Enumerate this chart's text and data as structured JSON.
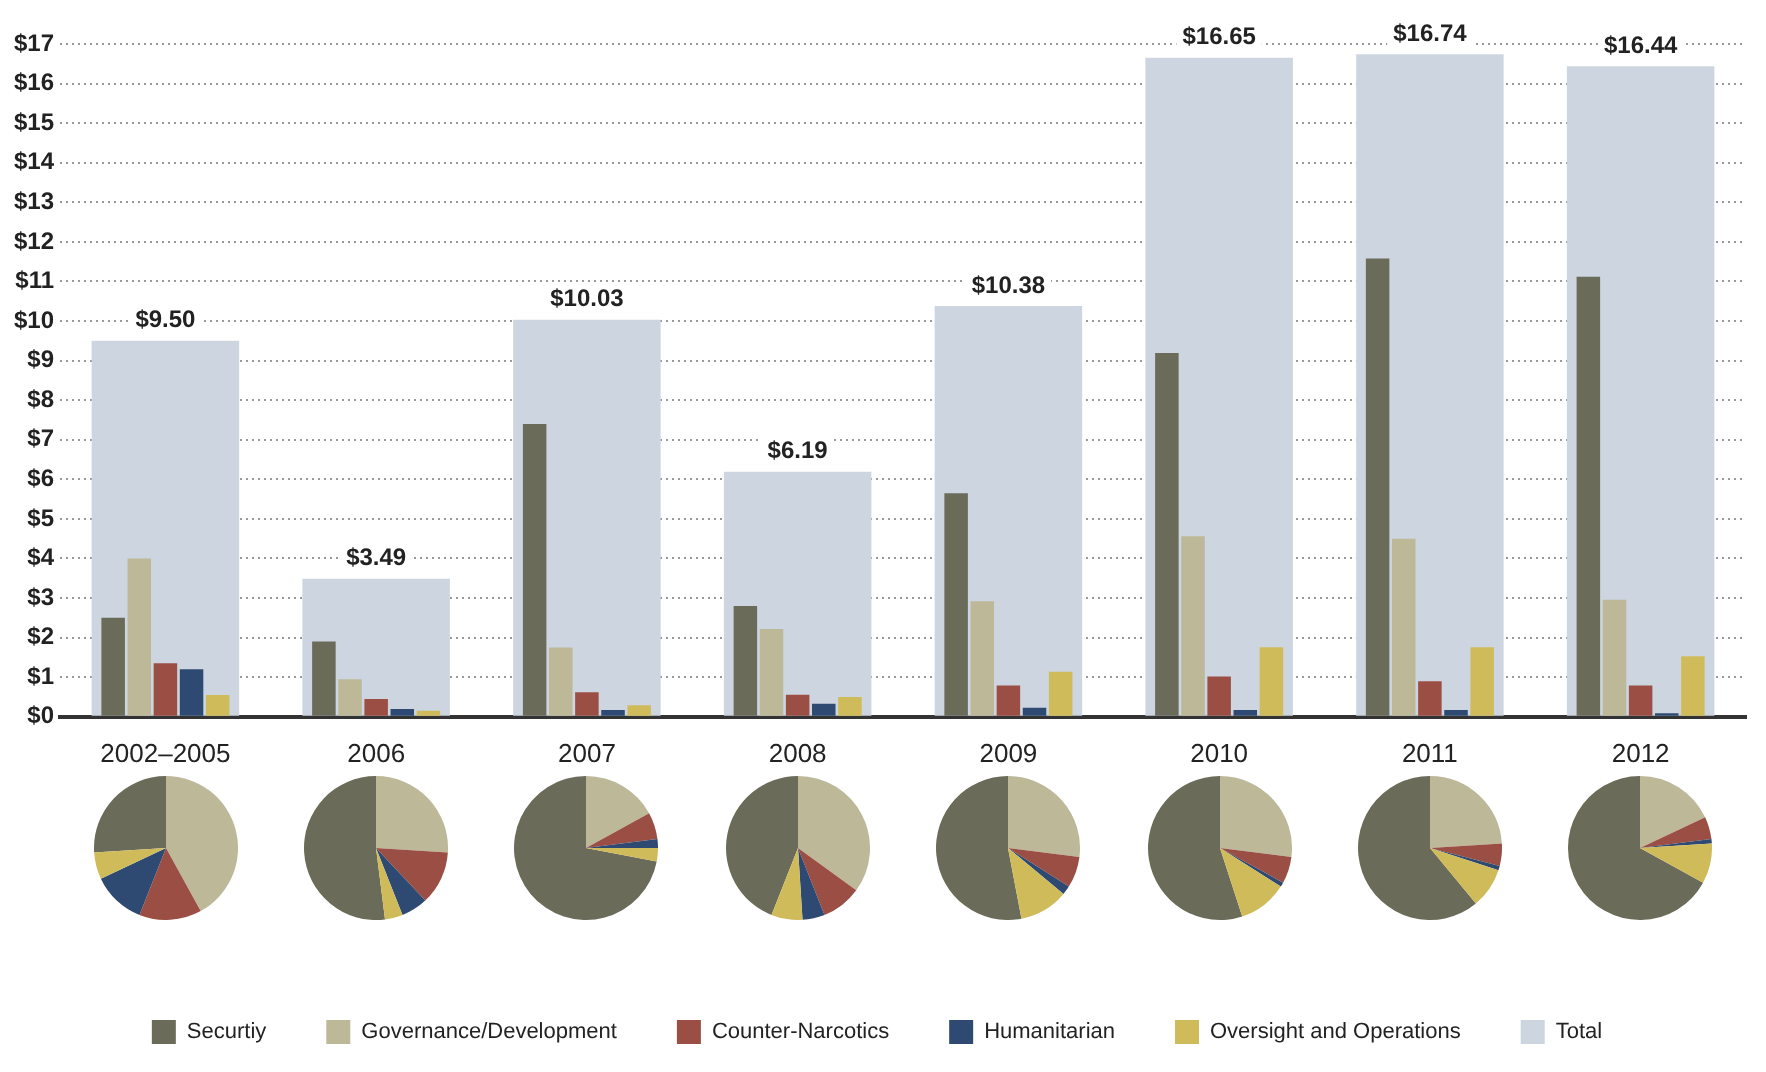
{
  "chart_data": [
    {
      "type": "bar",
      "categories": [
        "2002–2005",
        "2006",
        "2007",
        "2008",
        "2009",
        "2010",
        "2011",
        "2012"
      ],
      "series": [
        {
          "name": "Securtiy",
          "color": "#6b6b5a",
          "values": [
            2.5,
            1.9,
            7.4,
            2.8,
            5.65,
            9.19,
            11.58,
            11.12
          ]
        },
        {
          "name": "Governance/Development",
          "color": "#bcb898",
          "values": [
            4.0,
            0.95,
            1.75,
            2.22,
            2.92,
            4.56,
            4.5,
            2.96
          ]
        },
        {
          "name": "Counter-Narcotics",
          "color": "#9b4f44",
          "values": [
            1.35,
            0.45,
            0.62,
            0.56,
            0.79,
            1.02,
            0.9,
            0.79
          ]
        },
        {
          "name": "Humanitarian",
          "color": "#2f4a72",
          "values": [
            1.2,
            0.2,
            0.17,
            0.33,
            0.23,
            0.17,
            0.17,
            0.09
          ]
        },
        {
          "name": "Oversight and Operations",
          "color": "#d0bb5a",
          "values": [
            0.55,
            0.15,
            0.29,
            0.5,
            1.14,
            1.76,
            1.76,
            1.53
          ]
        },
        {
          "name": "Total",
          "color": "#cdd6e0",
          "values": [
            9.5,
            3.49,
            10.03,
            6.19,
            10.38,
            16.65,
            16.74,
            16.44
          ],
          "value_labels": [
            "$9.50",
            "$3.49",
            "$10.03",
            "$6.19",
            "$10.38",
            "$16.65",
            "$16.74",
            "$16.44"
          ]
        }
      ],
      "ylim": [
        0,
        17
      ],
      "yticks": [
        {
          "value": 0,
          "label": "$0"
        },
        {
          "value": 1,
          "label": "$1"
        },
        {
          "value": 2,
          "label": "$2"
        },
        {
          "value": 3,
          "label": "$3"
        },
        {
          "value": 4,
          "label": "$4"
        },
        {
          "value": 5,
          "label": "$5"
        },
        {
          "value": 6,
          "label": "$6"
        },
        {
          "value": 7,
          "label": "$7"
        },
        {
          "value": 8,
          "label": "$8"
        },
        {
          "value": 9,
          "label": "$9"
        },
        {
          "value": 10,
          "label": "$10"
        },
        {
          "value": 11,
          "label": "$11"
        },
        {
          "value": 12,
          "label": "$12"
        },
        {
          "value": 13,
          "label": "$13"
        },
        {
          "value": 14,
          "label": "$14"
        },
        {
          "value": 15,
          "label": "$15"
        },
        {
          "value": 16,
          "label": "$16"
        },
        {
          "value": 17,
          "label": "$17"
        }
      ],
      "grid": "y",
      "legend": "bottom"
    },
    {
      "type": "pie",
      "categories": [
        null,
        null,
        null,
        null,
        null
      ],
      "values": [
        26,
        42,
        14,
        12,
        6
      ],
      "colors": [
        "#6b6b5a",
        "#bcb898",
        "#9b4f44",
        "#2f4a72",
        "#d0bb5a"
      ]
    },
    {
      "type": "pie",
      "categories": [
        null,
        null,
        null,
        null,
        null
      ],
      "values": [
        52,
        26,
        12,
        6,
        4
      ],
      "colors": [
        "#6b6b5a",
        "#bcb898",
        "#9b4f44",
        "#2f4a72",
        "#d0bb5a"
      ]
    },
    {
      "type": "pie",
      "categories": [
        null,
        null,
        null,
        null,
        null
      ],
      "values": [
        72,
        17,
        6,
        2,
        3
      ],
      "colors": [
        "#6b6b5a",
        "#bcb898",
        "#9b4f44",
        "#2f4a72",
        "#d0bb5a"
      ]
    },
    {
      "type": "pie",
      "categories": [
        null,
        null,
        null,
        null,
        null
      ],
      "values": [
        44,
        35,
        9,
        5,
        7
      ],
      "colors": [
        "#6b6b5a",
        "#bcb898",
        "#9b4f44",
        "#2f4a72",
        "#d0bb5a"
      ]
    },
    {
      "type": "pie",
      "categories": [
        null,
        null,
        null,
        null,
        null
      ],
      "values": [
        53,
        27,
        7,
        2,
        11
      ],
      "colors": [
        "#6b6b5a",
        "#bcb898",
        "#9b4f44",
        "#2f4a72",
        "#d0bb5a"
      ]
    },
    {
      "type": "pie",
      "categories": [
        null,
        null,
        null,
        null,
        null
      ],
      "values": [
        55,
        27,
        6,
        1,
        11
      ],
      "colors": [
        "#6b6b5a",
        "#bcb898",
        "#9b4f44",
        "#2f4a72",
        "#d0bb5a"
      ]
    },
    {
      "type": "pie",
      "categories": [
        null,
        null,
        null,
        null,
        null
      ],
      "values": [
        61,
        24,
        5,
        1,
        9
      ],
      "colors": [
        "#6b6b5a",
        "#bcb898",
        "#9b4f44",
        "#2f4a72",
        "#d0bb5a"
      ]
    },
    {
      "type": "pie",
      "categories": [
        null,
        null,
        null,
        null,
        null
      ],
      "values": [
        67,
        18,
        5,
        1,
        9
      ],
      "colors": [
        "#6b6b5a",
        "#bcb898",
        "#9b4f44",
        "#2f4a72",
        "#d0bb5a"
      ]
    }
  ]
}
